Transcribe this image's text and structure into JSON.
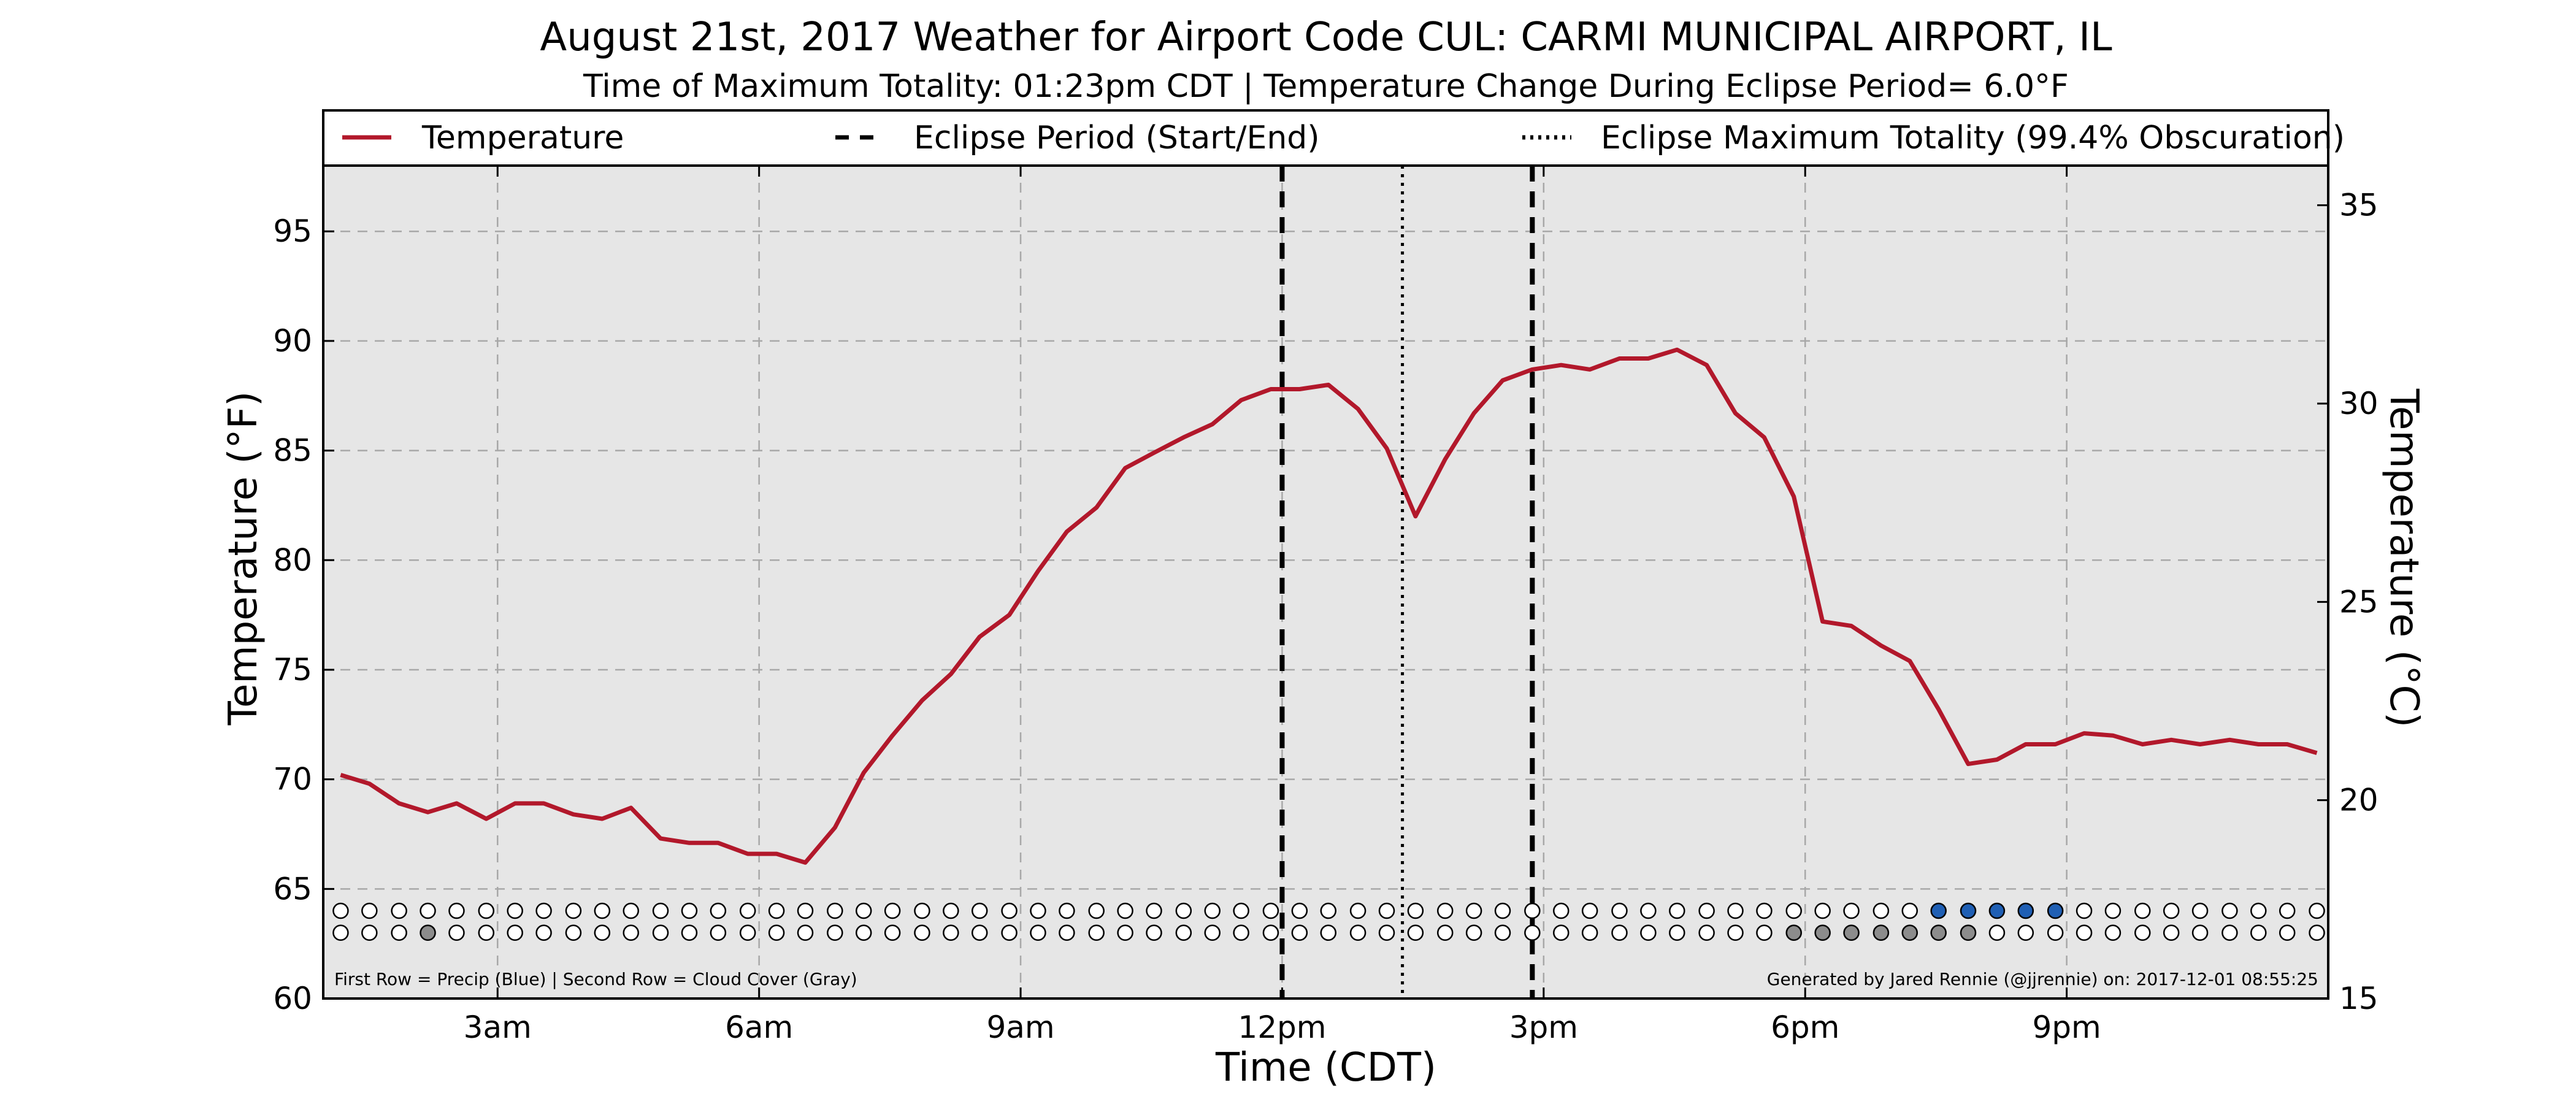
{
  "chart_data": {
    "type": "line",
    "title": "August 21st, 2017 Weather for Airport Code CUL: CARMI MUNICIPAL AIRPORT, IL",
    "subtitle": "Time of Maximum Totality: 01:23pm CDT | Temperature Change During Eclipse Period= 6.0°F",
    "xlabel": "Time (CDT)",
    "ylabel_left": "Temperature (°F)",
    "ylabel_right": "Temperature (°C)",
    "x_unit": "hours",
    "xlim": [
      1.0,
      24.0
    ],
    "ylim_left": [
      60,
      98
    ],
    "ylim_right": [
      15,
      36
    ],
    "x_ticks": [
      {
        "value": 3,
        "label": "3am"
      },
      {
        "value": 6,
        "label": "6am"
      },
      {
        "value": 9,
        "label": "9am"
      },
      {
        "value": 12,
        "label": "12pm"
      },
      {
        "value": 15,
        "label": "3pm"
      },
      {
        "value": 18,
        "label": "6pm"
      },
      {
        "value": 21,
        "label": "9pm"
      }
    ],
    "y_ticks_left": [
      60,
      65,
      70,
      75,
      80,
      85,
      90,
      95
    ],
    "y_ticks_right": [
      15,
      20,
      25,
      30,
      35
    ],
    "grid": true,
    "legend_position": "top",
    "legend": [
      {
        "label": "Temperature",
        "style": "solid",
        "color": "#b2182b"
      },
      {
        "label": "Eclipse Period (Start/End)",
        "style": "dashed",
        "color": "#000000"
      },
      {
        "label": "Eclipse Maximum Totality (99.4% Obscuration)",
        "style": "dotted",
        "color": "#000000"
      }
    ],
    "series": [
      {
        "name": "Temperature",
        "color": "#b2182b",
        "x": [
          1.2,
          1.53,
          1.87,
          2.2,
          2.53,
          2.87,
          3.2,
          3.53,
          3.87,
          4.2,
          4.53,
          4.87,
          5.2,
          5.53,
          5.87,
          6.2,
          6.53,
          6.87,
          7.2,
          7.53,
          7.87,
          8.2,
          8.53,
          8.87,
          9.2,
          9.53,
          9.87,
          10.2,
          10.53,
          10.87,
          11.2,
          11.53,
          11.87,
          12.2,
          12.53,
          12.87,
          13.2,
          13.53,
          13.87,
          14.2,
          14.53,
          14.87,
          15.2,
          15.53,
          15.87,
          16.2,
          16.53,
          16.87,
          17.2,
          17.53,
          17.87,
          18.2,
          18.53,
          18.87,
          19.2,
          19.53,
          19.87,
          20.2,
          20.53,
          20.87,
          21.2,
          21.53,
          21.87,
          22.2,
          22.53,
          22.87,
          23.2,
          23.53,
          23.87
        ],
        "y": [
          70.2,
          69.8,
          68.9,
          68.5,
          68.9,
          68.2,
          68.9,
          68.9,
          68.4,
          68.2,
          68.7,
          67.3,
          67.1,
          67.1,
          66.6,
          66.6,
          66.2,
          67.8,
          70.3,
          72.0,
          73.6,
          74.8,
          76.5,
          77.5,
          79.5,
          81.3,
          82.4,
          84.2,
          84.9,
          85.6,
          86.2,
          87.3,
          87.8,
          87.8,
          88.0,
          86.9,
          85.1,
          82.0,
          84.6,
          86.7,
          88.2,
          88.7,
          88.9,
          88.7,
          89.2,
          89.2,
          89.6,
          88.9,
          86.7,
          85.6,
          82.9,
          77.2,
          77.0,
          76.1,
          75.4,
          73.2,
          70.7,
          70.9,
          71.6,
          71.6,
          72.1,
          72.0,
          71.6,
          71.8,
          71.6,
          71.8,
          71.6,
          71.6,
          71.2
        ]
      }
    ],
    "eclipse_start": 12.0,
    "eclipse_end": 14.87,
    "eclipse_max": 13.38,
    "indicator_x": [
      1.2,
      1.53,
      1.87,
      2.2,
      2.53,
      2.87,
      3.2,
      3.53,
      3.87,
      4.2,
      4.53,
      4.87,
      5.2,
      5.53,
      5.87,
      6.2,
      6.53,
      6.87,
      7.2,
      7.53,
      7.87,
      8.2,
      8.53,
      8.87,
      9.2,
      9.53,
      9.87,
      10.2,
      10.53,
      10.87,
      11.2,
      11.53,
      11.87,
      12.2,
      12.53,
      12.87,
      13.2,
      13.53,
      13.87,
      14.2,
      14.53,
      14.87,
      15.2,
      15.53,
      15.87,
      16.2,
      16.53,
      16.87,
      17.2,
      17.53,
      17.87,
      18.2,
      18.53,
      18.87,
      19.2,
      19.53,
      19.87,
      20.2,
      20.53,
      20.87,
      21.2,
      21.53,
      21.87,
      22.2,
      22.53,
      22.87,
      23.2,
      23.53,
      23.87
    ],
    "precip_row_y": 64,
    "cloud_row_y": 63,
    "precip_color": "#1f5fb4",
    "cloud_color": "#8c8c8c",
    "precip_filled_x": [
      19.53,
      19.87,
      20.2,
      20.53,
      20.87
    ],
    "cloud_filled_x": [
      2.2,
      17.87,
      18.2,
      18.53,
      18.87,
      19.2,
      19.53,
      19.87
    ],
    "note_left": "First Row = Precip (Blue) | Second Row = Cloud Cover (Gray)",
    "note_right": "Generated by Jared Rennie (@jjrennie) on: 2017-12-01 08:55:25"
  }
}
